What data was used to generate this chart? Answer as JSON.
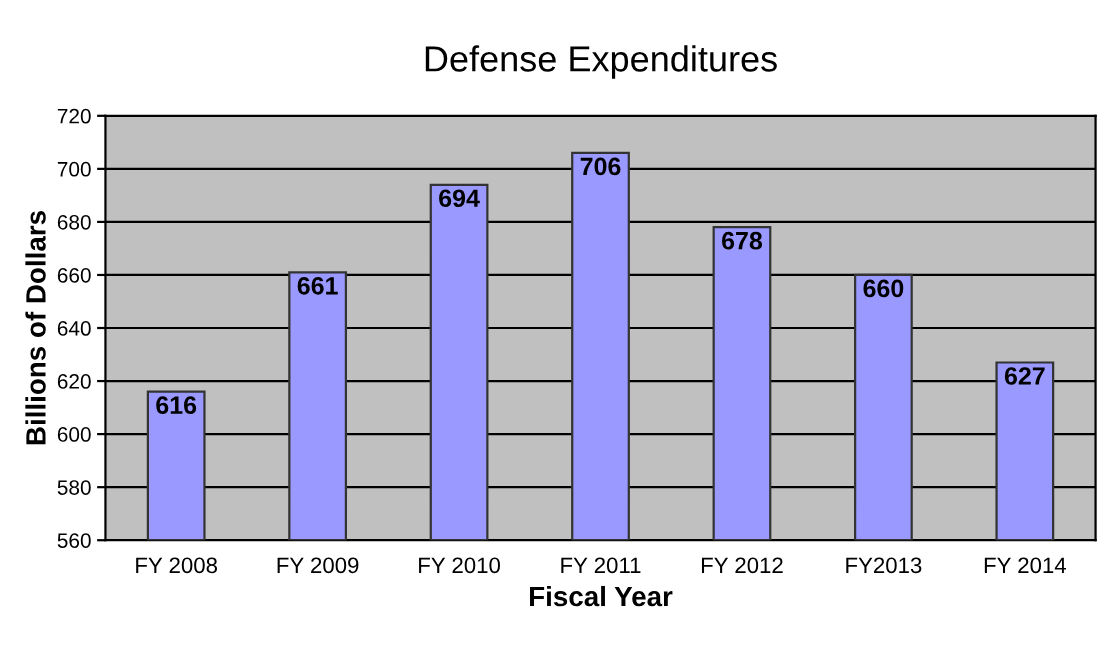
{
  "chart_data": {
    "type": "bar",
    "title": "Defense Expenditures",
    "xlabel": "Fiscal Year",
    "ylabel": "Billions of Dollars",
    "categories": [
      "FY 2008",
      "FY 2009",
      "FY 2010",
      "FY 2011",
      "FY 2012",
      "FY2013",
      "FY 2014"
    ],
    "values": [
      616,
      661,
      694,
      706,
      678,
      660,
      627
    ],
    "color": "#9999ff",
    "ylim": [
      560,
      720
    ],
    "yticks": [
      560,
      580,
      600,
      620,
      640,
      660,
      680,
      700,
      720
    ],
    "grid": "y",
    "data_labels": true
  }
}
